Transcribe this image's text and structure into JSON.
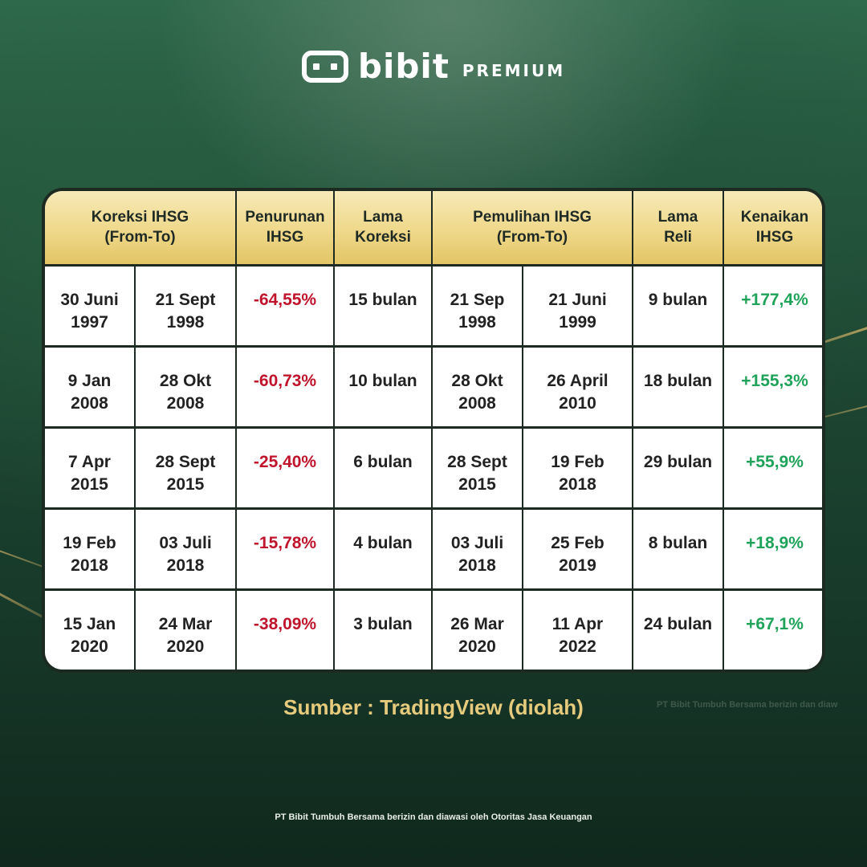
{
  "brand": {
    "name": "bibit",
    "tier": "PREMIUM",
    "logo_icon": "bibit-logo-icon"
  },
  "table": {
    "headers": [
      "Koreksi IHSG\n(From-To)",
      "Penurunan\nIHSG",
      "Lama\nKoreksi",
      "Pemulihan IHSG\n(From-To)",
      "Lama\nReli",
      "Kenaikan\nIHSG"
    ],
    "rows": [
      {
        "corr_from": "30 Juni\n1997",
        "corr_to": "21 Sept\n1998",
        "drop": "-64,55%",
        "corr_dur": "15 bulan",
        "rec_from": "21 Sep\n1998",
        "rec_to": "21 Juni\n1999",
        "rally_dur": "9 bulan",
        "gain": "+177,4%"
      },
      {
        "corr_from": "9 Jan\n2008",
        "corr_to": "28 Okt\n2008",
        "drop": "-60,73%",
        "corr_dur": "10 bulan",
        "rec_from": "28 Okt\n2008",
        "rec_to": "26 April\n2010",
        "rally_dur": "18 bulan",
        "gain": "+155,3%"
      },
      {
        "corr_from": "7 Apr\n2015",
        "corr_to": "28 Sept\n2015",
        "drop": "-25,40%",
        "corr_dur": "6 bulan",
        "rec_from": "28 Sept\n2015",
        "rec_to": "19 Feb\n2018",
        "rally_dur": "29 bulan",
        "gain": "+55,9%"
      },
      {
        "corr_from": "19 Feb\n2018",
        "corr_to": "03 Juli\n2018",
        "drop": "-15,78%",
        "corr_dur": "4 bulan",
        "rec_from": "03 Juli\n2018",
        "rec_to": "25 Feb\n2019",
        "rally_dur": "8 bulan",
        "gain": "+18,9%"
      },
      {
        "corr_from": "15 Jan\n2020",
        "corr_to": "24 Mar\n2020",
        "drop": "-38,09%",
        "corr_dur": "3 bulan",
        "rec_from": "26 Mar\n2020",
        "rec_to": "11 Apr\n2022",
        "rally_dur": "24 bulan",
        "gain": "+67,1%"
      }
    ]
  },
  "source_text": "Sumber : TradingView (diolah)",
  "watermark_text": "PT Bibit Tumbuh Bersama berizin dan diaw",
  "footer_text": "PT Bibit Tumbuh Bersama berizin dan diawasi oleh Otoritas Jasa Keuangan",
  "colors": {
    "negative": "#c0142c",
    "positive": "#1fa35a",
    "header_gold": "#efd88a",
    "source_gold": "#e6cb7d"
  }
}
